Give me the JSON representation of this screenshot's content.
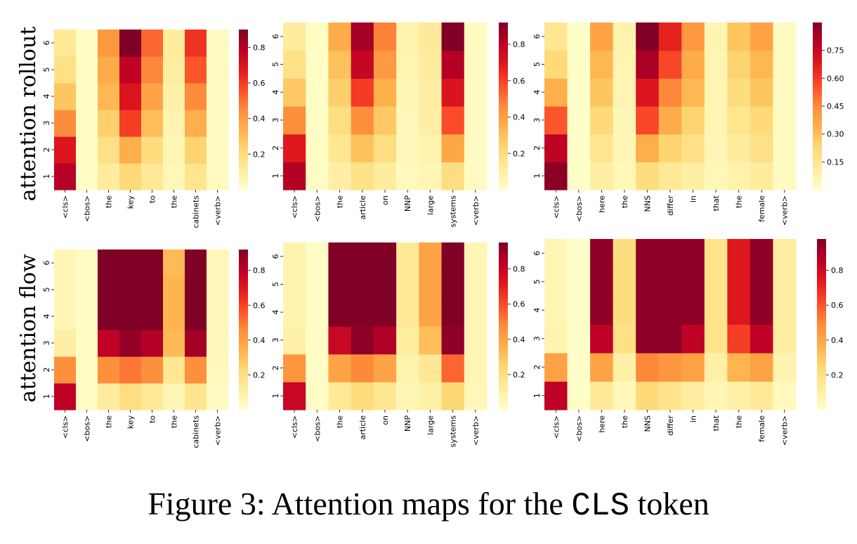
{
  "figure": {
    "caption_prefix": "Figure 3: Attention maps for the ",
    "caption_code": "CLS",
    "caption_suffix": " token",
    "row_labels": [
      "attention rollout",
      "attention flow"
    ]
  },
  "colormap": [
    "#ffffcc",
    "#ffeda0",
    "#fed976",
    "#feb24c",
    "#fd8d3c",
    "#fc4e2a",
    "#e31a1c",
    "#bd0026",
    "#800026"
  ],
  "chart_data": [
    {
      "type": "heatmap",
      "panel": "rollout-1",
      "xlabels": [
        "<cls>",
        "<bos>",
        "the",
        "key",
        "to",
        "the",
        "cabinets",
        "<verb>"
      ],
      "ylabels": [
        "1",
        "2",
        "3",
        "4",
        "5",
        "6"
      ],
      "values": [
        [
          0.8,
          0.02,
          0.12,
          0.22,
          0.14,
          0.05,
          0.16,
          0.03
        ],
        [
          0.7,
          0.02,
          0.18,
          0.35,
          0.2,
          0.06,
          0.24,
          0.03
        ],
        [
          0.45,
          0.02,
          0.25,
          0.6,
          0.3,
          0.07,
          0.35,
          0.03
        ],
        [
          0.28,
          0.02,
          0.32,
          0.7,
          0.38,
          0.09,
          0.45,
          0.03
        ],
        [
          0.18,
          0.02,
          0.36,
          0.78,
          0.46,
          0.11,
          0.55,
          0.03
        ],
        [
          0.14,
          0.02,
          0.42,
          0.9,
          0.52,
          0.12,
          0.62,
          0.03
        ]
      ],
      "colorbar_ticks": [
        0.2,
        0.4,
        0.6,
        0.8
      ],
      "vmin": 0,
      "vmax": 0.9
    },
    {
      "type": "heatmap",
      "panel": "rollout-2",
      "xlabels": [
        "<cls>",
        "<bos>",
        "the",
        "article",
        "on",
        "NNP",
        "large",
        "systems",
        "<verb>"
      ],
      "ylabels": [
        "1",
        "2",
        "3",
        "4",
        "5",
        "6"
      ],
      "values": [
        [
          0.82,
          0.02,
          0.1,
          0.18,
          0.12,
          0.04,
          0.06,
          0.2,
          0.03
        ],
        [
          0.7,
          0.02,
          0.15,
          0.3,
          0.2,
          0.05,
          0.08,
          0.38,
          0.03
        ],
        [
          0.45,
          0.02,
          0.2,
          0.45,
          0.28,
          0.05,
          0.1,
          0.58,
          0.03
        ],
        [
          0.28,
          0.02,
          0.26,
          0.62,
          0.35,
          0.06,
          0.11,
          0.72,
          0.03
        ],
        [
          0.18,
          0.02,
          0.3,
          0.78,
          0.42,
          0.07,
          0.12,
          0.82,
          0.03
        ],
        [
          0.12,
          0.02,
          0.36,
          0.85,
          0.48,
          0.08,
          0.13,
          0.92,
          0.03
        ]
      ],
      "colorbar_ticks": [
        0.2,
        0.4,
        0.6,
        0.8
      ],
      "vmin": 0,
      "vmax": 0.92
    },
    {
      "type": "heatmap",
      "panel": "rollout-3",
      "xlabels": [
        "<cls>",
        "<bos>",
        "here",
        "the",
        "NNS",
        "differ",
        "in",
        "that",
        "the",
        "female",
        "<verb>"
      ],
      "ylabels": [
        "1",
        "2",
        "3",
        "4",
        "5",
        "6"
      ],
      "values": [
        [
          0.88,
          0.01,
          0.1,
          0.05,
          0.2,
          0.14,
          0.1,
          0.05,
          0.08,
          0.12,
          0.03
        ],
        [
          0.78,
          0.01,
          0.16,
          0.06,
          0.35,
          0.24,
          0.18,
          0.06,
          0.12,
          0.18,
          0.03
        ],
        [
          0.55,
          0.01,
          0.22,
          0.06,
          0.58,
          0.36,
          0.24,
          0.06,
          0.16,
          0.22,
          0.03
        ],
        [
          0.35,
          0.01,
          0.28,
          0.07,
          0.7,
          0.46,
          0.32,
          0.07,
          0.2,
          0.28,
          0.03
        ],
        [
          0.22,
          0.01,
          0.32,
          0.07,
          0.82,
          0.58,
          0.36,
          0.07,
          0.24,
          0.32,
          0.03
        ],
        [
          0.15,
          0.01,
          0.38,
          0.08,
          0.9,
          0.66,
          0.42,
          0.07,
          0.28,
          0.38,
          0.03
        ]
      ],
      "colorbar_ticks": [
        0.15,
        0.3,
        0.45,
        0.6,
        0.75
      ],
      "vmin": 0,
      "vmax": 0.9
    },
    {
      "type": "heatmap",
      "panel": "flow-1",
      "xlabels": [
        "<cls>",
        "<bos>",
        "the",
        "key",
        "to",
        "the",
        "cabinets",
        "<verb>"
      ],
      "ylabels": [
        "1",
        "2",
        "3",
        "4",
        "5",
        "6"
      ],
      "values": [
        [
          0.8,
          0.02,
          0.12,
          0.2,
          0.14,
          0.06,
          0.16,
          0.03
        ],
        [
          0.45,
          0.02,
          0.45,
          0.5,
          0.45,
          0.15,
          0.45,
          0.04
        ],
        [
          0.1,
          0.02,
          0.8,
          0.88,
          0.82,
          0.32,
          0.85,
          0.05
        ],
        [
          0.06,
          0.02,
          0.92,
          0.92,
          0.92,
          0.34,
          0.92,
          0.05
        ],
        [
          0.06,
          0.02,
          0.92,
          0.92,
          0.92,
          0.34,
          0.92,
          0.05
        ],
        [
          0.06,
          0.02,
          0.92,
          0.92,
          0.92,
          0.32,
          0.92,
          0.05
        ]
      ],
      "colorbar_ticks": [
        0.2,
        0.4,
        0.6,
        0.8
      ],
      "vmin": 0,
      "vmax": 0.92
    },
    {
      "type": "heatmap",
      "panel": "flow-2",
      "xlabels": [
        "<cls>",
        "<bos>",
        "the",
        "article",
        "on",
        "NNP",
        "large",
        "systems",
        "<verb>"
      ],
      "ylabels": [
        "1",
        "2",
        "3",
        "4",
        "5",
        "6"
      ],
      "values": [
        [
          0.8,
          0.02,
          0.14,
          0.22,
          0.16,
          0.06,
          0.1,
          0.24,
          0.05
        ],
        [
          0.45,
          0.02,
          0.4,
          0.48,
          0.4,
          0.08,
          0.15,
          0.55,
          0.06
        ],
        [
          0.1,
          0.02,
          0.8,
          0.92,
          0.85,
          0.12,
          0.32,
          0.92,
          0.06
        ],
        [
          0.08,
          0.02,
          0.95,
          0.95,
          0.95,
          0.14,
          0.4,
          0.95,
          0.06
        ],
        [
          0.08,
          0.02,
          0.95,
          0.95,
          0.95,
          0.14,
          0.4,
          0.95,
          0.06
        ],
        [
          0.08,
          0.02,
          0.95,
          0.95,
          0.95,
          0.14,
          0.4,
          0.95,
          0.06
        ]
      ],
      "colorbar_ticks": [
        0.2,
        0.4,
        0.6,
        0.8
      ],
      "vmin": 0,
      "vmax": 0.95
    },
    {
      "type": "heatmap",
      "panel": "flow-3",
      "xlabels": [
        "<cls>",
        "<bos>",
        "here",
        "the",
        "NNS",
        "differ",
        "in",
        "that",
        "the",
        "female",
        "<verb>"
      ],
      "ylabels": [
        "1",
        "2",
        "3",
        "4",
        "5",
        "6"
      ],
      "values": [
        [
          0.85,
          0.01,
          0.14,
          0.05,
          0.24,
          0.18,
          0.12,
          0.06,
          0.1,
          0.14,
          0.04
        ],
        [
          0.42,
          0.01,
          0.42,
          0.1,
          0.5,
          0.46,
          0.42,
          0.1,
          0.36,
          0.42,
          0.08
        ],
        [
          0.08,
          0.01,
          0.85,
          0.2,
          0.95,
          0.95,
          0.85,
          0.18,
          0.65,
          0.85,
          0.12
        ],
        [
          0.06,
          0.01,
          0.95,
          0.22,
          0.95,
          0.95,
          0.95,
          0.18,
          0.75,
          0.95,
          0.12
        ],
        [
          0.06,
          0.01,
          0.95,
          0.22,
          0.95,
          0.95,
          0.95,
          0.18,
          0.75,
          0.95,
          0.12
        ],
        [
          0.06,
          0.01,
          0.95,
          0.22,
          0.95,
          0.95,
          0.95,
          0.18,
          0.75,
          0.95,
          0.12
        ]
      ],
      "colorbar_ticks": [
        0.2,
        0.4,
        0.6,
        0.8
      ],
      "vmin": 0,
      "vmax": 0.98
    }
  ]
}
